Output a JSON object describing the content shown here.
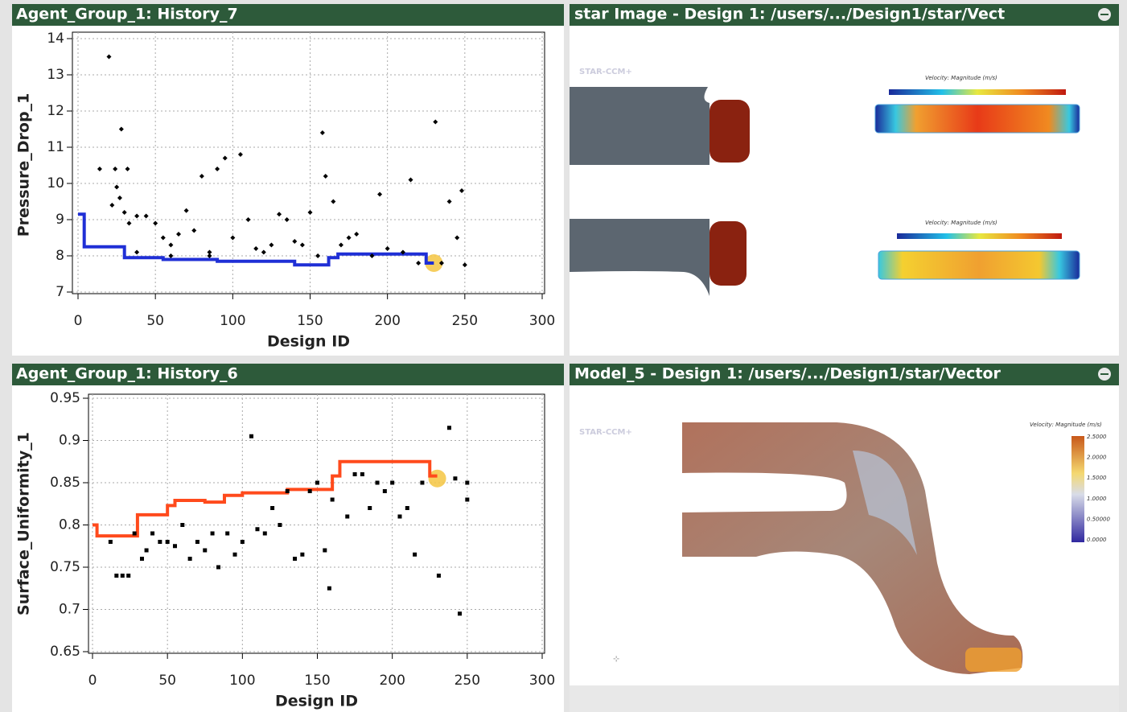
{
  "panels": [
    {
      "title": "Agent_Group_1: History_7"
    },
    {
      "title": "star Image - Design 1: /users/.../Design1/star/Vect"
    },
    {
      "title": "Agent_Group_1: History_6"
    },
    {
      "title": "Model_5 - Design 1: /users/.../Design1/star/Vector"
    }
  ],
  "images": {
    "logo": "STAR-CCM+",
    "top_legend": "Velocity: Magnitude (m/s)",
    "bottom_legend": "Velocity: Magnitude (m/s)",
    "bottom_ticks": [
      "2.5000",
      "2.0000",
      "1.5000",
      "1.0000",
      "0.50000",
      "0.0000"
    ]
  },
  "chart_data": [
    {
      "type": "scatter",
      "x_label": "Design ID",
      "y_label": "Pressure_Drop_1",
      "marker": "diamond",
      "color": "#000000",
      "x": [
        20,
        14,
        24,
        28,
        32,
        25,
        27,
        22,
        30,
        33,
        38,
        44,
        50,
        55,
        60,
        65,
        70,
        75,
        80,
        85,
        90,
        95,
        100,
        105,
        110,
        115,
        120,
        125,
        130,
        135,
        140,
        145,
        150,
        155,
        158,
        160,
        165,
        170,
        175,
        180,
        190,
        195,
        200,
        210,
        215,
        220,
        231,
        235,
        240,
        245,
        248,
        250,
        38,
        60,
        85
      ],
      "values": [
        13.5,
        10.4,
        10.4,
        11.5,
        10.4,
        9.9,
        9.6,
        9.4,
        9.2,
        8.9,
        9.1,
        9.1,
        8.9,
        8.5,
        8.3,
        8.6,
        9.25,
        8.7,
        10.2,
        8.1,
        10.4,
        10.7,
        8.5,
        10.8,
        9.0,
        8.2,
        8.1,
        8.3,
        9.15,
        9.0,
        8.4,
        8.3,
        9.2,
        8.0,
        11.4,
        10.2,
        9.5,
        8.3,
        8.5,
        8.6,
        8.0,
        9.7,
        8.2,
        8.1,
        10.1,
        7.8,
        11.7,
        7.8,
        9.5,
        8.5,
        9.8,
        7.75,
        8.1,
        8.0,
        8.0
      ],
      "best_line": {
        "color": "#1f2fd6",
        "x": [
          0,
          4,
          4,
          30,
          30,
          55,
          55,
          90,
          90,
          140,
          140,
          162,
          162,
          168,
          168,
          225,
          225,
          230
        ],
        "values": [
          9.15,
          9.15,
          8.25,
          8.25,
          7.95,
          7.95,
          7.9,
          7.9,
          7.85,
          7.85,
          7.75,
          7.75,
          7.95,
          7.95,
          8.05,
          8.05,
          7.8,
          7.8
        ]
      },
      "highlight": {
        "x": 230,
        "value": 7.8,
        "color": "#f5c542"
      },
      "xlim": [
        0,
        300
      ],
      "xticks": [
        0,
        50,
        100,
        150,
        200,
        250,
        300
      ],
      "ylim": [
        7,
        14
      ],
      "yticks": [
        7,
        8,
        9,
        10,
        11,
        12,
        13,
        14
      ],
      "grid": true
    },
    {
      "type": "scatter",
      "x_label": "Design ID",
      "y_label": "Surface_Uniformity_1",
      "marker": "square",
      "color": "#000000",
      "x": [
        12,
        16,
        20,
        24,
        28,
        33,
        36,
        40,
        45,
        50,
        55,
        60,
        65,
        70,
        75,
        80,
        84,
        90,
        95,
        100,
        106,
        110,
        115,
        120,
        125,
        130,
        135,
        140,
        145,
        150,
        155,
        158,
        160,
        170,
        175,
        180,
        185,
        190,
        195,
        200,
        205,
        210,
        215,
        220,
        231,
        238,
        242,
        245,
        250,
        250
      ],
      "values": [
        0.78,
        0.74,
        0.74,
        0.74,
        0.79,
        0.76,
        0.77,
        0.79,
        0.78,
        0.78,
        0.775,
        0.8,
        0.76,
        0.78,
        0.77,
        0.79,
        0.75,
        0.79,
        0.765,
        0.78,
        0.905,
        0.795,
        0.79,
        0.82,
        0.8,
        0.84,
        0.76,
        0.765,
        0.84,
        0.85,
        0.77,
        0.725,
        0.83,
        0.81,
        0.86,
        0.86,
        0.82,
        0.85,
        0.84,
        0.85,
        0.81,
        0.82,
        0.765,
        0.85,
        0.74,
        0.915,
        0.855,
        0.695,
        0.83,
        0.85
      ],
      "best_line": {
        "color": "#ff4a1c",
        "x": [
          0,
          3,
          3,
          30,
          30,
          50,
          50,
          55,
          55,
          75,
          75,
          88,
          88,
          100,
          100,
          130,
          130,
          160,
          160,
          165,
          165,
          225,
          225,
          230
        ],
        "values": [
          0.8,
          0.8,
          0.787,
          0.787,
          0.812,
          0.812,
          0.823,
          0.823,
          0.829,
          0.829,
          0.827,
          0.827,
          0.835,
          0.835,
          0.838,
          0.838,
          0.842,
          0.842,
          0.858,
          0.858,
          0.875,
          0.875,
          0.858,
          0.858
        ]
      },
      "highlight": {
        "x": 230,
        "value": 0.855,
        "color": "#f5c542"
      },
      "xlim": [
        0,
        300
      ],
      "xticks": [
        0,
        50,
        100,
        150,
        200,
        250,
        300
      ],
      "ylim": [
        0.65,
        0.95
      ],
      "yticks": [
        0.65,
        0.7,
        0.75,
        0.8,
        0.85,
        0.9,
        0.95
      ],
      "grid": true
    }
  ]
}
